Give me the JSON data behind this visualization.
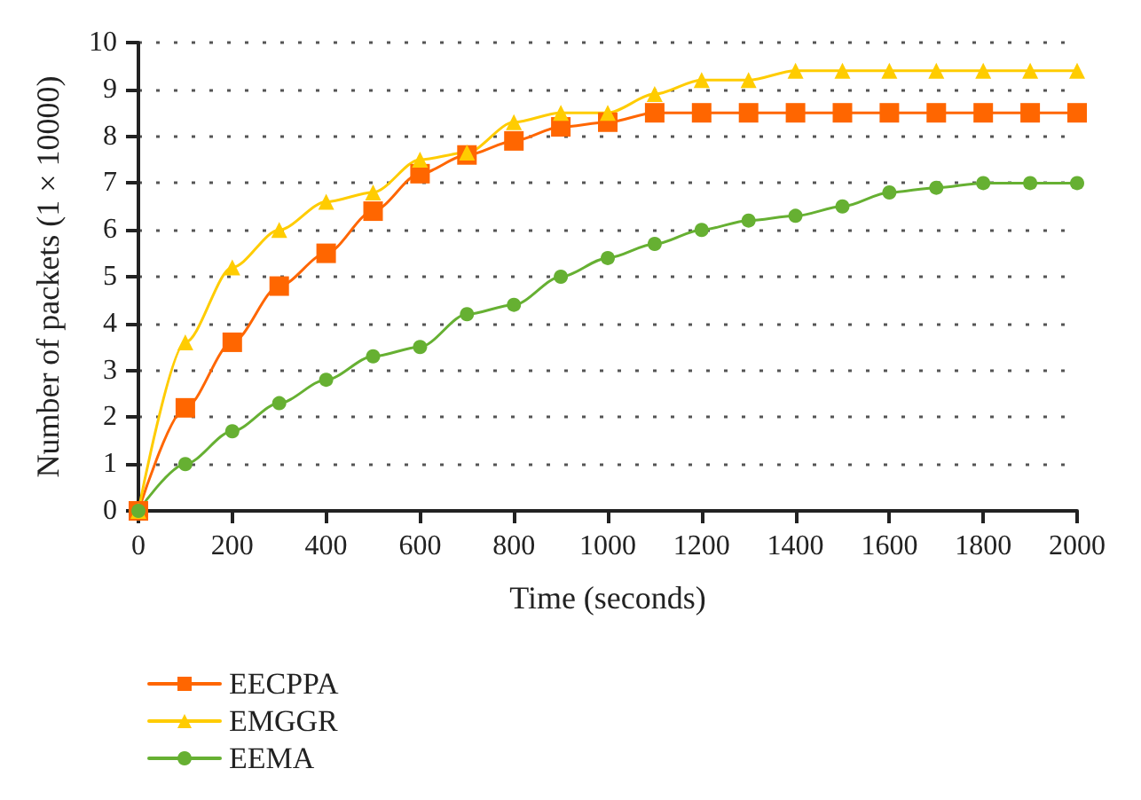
{
  "chart_data": {
    "type": "line",
    "xlabel": "Time (seconds)",
    "ylabel": "Number of packets (1 × 10000)",
    "x": [
      0,
      100,
      200,
      300,
      400,
      500,
      600,
      700,
      800,
      900,
      1000,
      1100,
      1200,
      1300,
      1400,
      1500,
      1600,
      1700,
      1800,
      1900,
      2000
    ],
    "series": [
      {
        "name": "EECPPA",
        "color": "#ff6600",
        "marker": "square",
        "values": [
          0,
          2.2,
          3.6,
          4.8,
          5.5,
          6.4,
          7.2,
          7.6,
          7.9,
          8.2,
          8.3,
          8.5,
          8.5,
          8.5,
          8.5,
          8.5,
          8.5,
          8.5,
          8.5,
          8.5,
          8.5
        ]
      },
      {
        "name": "EMGGR",
        "color": "#ffcc00",
        "marker": "triangle",
        "values": [
          0,
          3.6,
          5.2,
          6.0,
          6.6,
          6.8,
          7.5,
          7.65,
          8.3,
          8.5,
          8.5,
          8.9,
          9.2,
          9.2,
          9.4,
          9.4,
          9.4,
          9.4,
          9.4,
          9.4,
          9.4
        ]
      },
      {
        "name": "EEMA",
        "color": "#66b032",
        "marker": "circle",
        "values": [
          0,
          1.0,
          1.7,
          2.3,
          2.8,
          3.3,
          3.5,
          4.2,
          4.4,
          5.0,
          5.4,
          5.7,
          6.0,
          6.2,
          6.3,
          6.5,
          6.8,
          6.9,
          7.0,
          7.0,
          7.0
        ]
      }
    ],
    "xlim": [
      0,
      2000
    ],
    "xticks": [
      0,
      200,
      400,
      600,
      800,
      1000,
      1200,
      1400,
      1600,
      1800,
      2000
    ],
    "ylim": [
      0,
      10
    ],
    "yticks": [
      0,
      1,
      2,
      3,
      4,
      5,
      6,
      7,
      8,
      9,
      10
    ],
    "grid": "y",
    "legend": "bottom left"
  }
}
